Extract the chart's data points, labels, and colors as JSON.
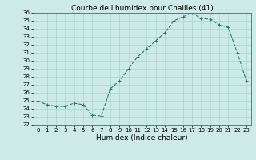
{
  "x": [
    0,
    1,
    2,
    3,
    4,
    5,
    6,
    7,
    8,
    9,
    10,
    11,
    12,
    13,
    14,
    15,
    16,
    17,
    18,
    19,
    20,
    21,
    22,
    23
  ],
  "y": [
    25.0,
    24.5,
    24.3,
    24.3,
    24.7,
    24.5,
    23.2,
    23.1,
    26.5,
    27.5,
    29.0,
    30.5,
    31.5,
    32.5,
    33.5,
    35.0,
    35.5,
    36.0,
    35.3,
    35.2,
    34.5,
    34.2,
    31.0,
    27.5
  ],
  "line_color": "#2d7a6e",
  "marker": "+",
  "marker_size": 3,
  "bg_color": "#cceae7",
  "grid_color": "#aad4d0",
  "title": "Courbe de l'humidex pour Chailles (41)",
  "xlabel": "Humidex (Indice chaleur)",
  "ylim": [
    22,
    36
  ],
  "yticks": [
    22,
    23,
    24,
    25,
    26,
    27,
    28,
    29,
    30,
    31,
    32,
    33,
    34,
    35,
    36
  ],
  "xticks": [
    0,
    1,
    2,
    3,
    4,
    5,
    6,
    7,
    8,
    9,
    10,
    11,
    12,
    13,
    14,
    15,
    16,
    17,
    18,
    19,
    20,
    21,
    22,
    23
  ],
  "xlim": [
    -0.5,
    23.5
  ],
  "tick_fontsize": 5,
  "xlabel_fontsize": 6.5,
  "title_fontsize": 6.5,
  "line_width": 0.8,
  "markeredgewidth": 0.7
}
